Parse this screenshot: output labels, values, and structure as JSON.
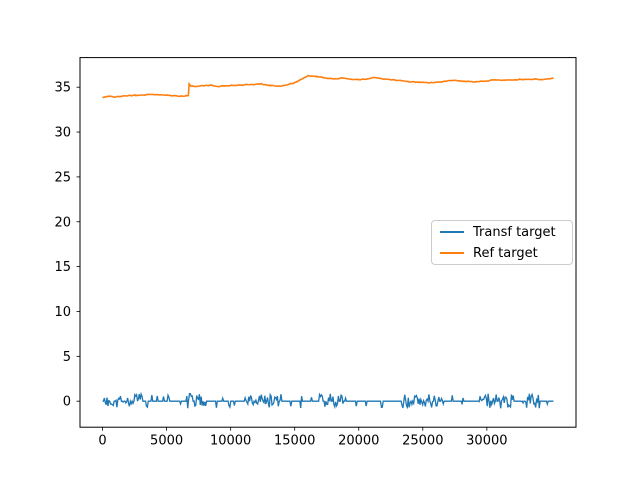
{
  "figure": {
    "background": "#ffffff",
    "axes_edge_color": "#000000",
    "tick_color": "#000000"
  },
  "chart_data": {
    "type": "line",
    "title": "",
    "xlabel": "",
    "ylabel": "",
    "grid": false,
    "xlim": [
      -1760,
      36960
    ],
    "ylim": [
      -2.9,
      38.3
    ],
    "xticks": [
      0,
      5000,
      10000,
      15000,
      20000,
      25000,
      30000
    ],
    "yticks": [
      0,
      5,
      10,
      15,
      20,
      25,
      30,
      35
    ],
    "legend": {
      "position": "center right",
      "entries": [
        {
          "label": "Transf target",
          "color": "#1f77b4"
        },
        {
          "label": "Ref target",
          "color": "#ff7f0e"
        }
      ]
    },
    "series": [
      {
        "name": "Transf target",
        "color": "#1f77b4",
        "kind": "noisy_baseline",
        "baseline": 0,
        "x_start": 0,
        "x_end": 35200,
        "spike_amp_up": 0.85,
        "spike_amp_down": 0.8,
        "burst_regions": [
          [
            0,
            3100
          ],
          [
            6500,
            8300
          ],
          [
            11100,
            14100
          ],
          [
            16900,
            19000
          ],
          [
            23300,
            26600
          ],
          [
            29400,
            32200
          ],
          [
            32600,
            34200
          ]
        ],
        "single_spikes": [
          3470,
          3860,
          4250,
          4760,
          5150,
          6100,
          8900,
          9400,
          9900,
          10300,
          14700,
          15500,
          16300,
          19800,
          20600,
          21800,
          27300,
          28100,
          34700
        ]
      },
      {
        "name": "Ref target",
        "color": "#ff7f0e",
        "kind": "keypoints",
        "noise": 0.05,
        "keypoints": [
          [
            0,
            33.85
          ],
          [
            400,
            34.0
          ],
          [
            900,
            33.9
          ],
          [
            1800,
            34.05
          ],
          [
            2600,
            34.1
          ],
          [
            3400,
            34.15
          ],
          [
            4200,
            34.2
          ],
          [
            5000,
            34.1
          ],
          [
            5800,
            34.0
          ],
          [
            6500,
            34.05
          ],
          [
            6700,
            34.05
          ],
          [
            6760,
            35.4
          ],
          [
            6900,
            35.1
          ],
          [
            7600,
            35.15
          ],
          [
            8400,
            35.2
          ],
          [
            9200,
            35.1
          ],
          [
            10000,
            35.2
          ],
          [
            10800,
            35.25
          ],
          [
            11600,
            35.3
          ],
          [
            12400,
            35.35
          ],
          [
            13100,
            35.2
          ],
          [
            13800,
            35.1
          ],
          [
            14400,
            35.25
          ],
          [
            15100,
            35.55
          ],
          [
            15700,
            36.0
          ],
          [
            16100,
            36.3
          ],
          [
            16700,
            36.2
          ],
          [
            17300,
            36.05
          ],
          [
            18000,
            35.95
          ],
          [
            18700,
            36.0
          ],
          [
            19400,
            35.9
          ],
          [
            20000,
            35.85
          ],
          [
            20700,
            35.9
          ],
          [
            21300,
            36.1
          ],
          [
            21700,
            35.95
          ],
          [
            22400,
            35.85
          ],
          [
            23100,
            35.75
          ],
          [
            23900,
            35.6
          ],
          [
            24700,
            35.55
          ],
          [
            25500,
            35.5
          ],
          [
            26300,
            35.55
          ],
          [
            26900,
            35.7
          ],
          [
            27600,
            35.75
          ],
          [
            28400,
            35.65
          ],
          [
            29200,
            35.6
          ],
          [
            30000,
            35.7
          ],
          [
            30700,
            35.85
          ],
          [
            31400,
            35.8
          ],
          [
            32100,
            35.85
          ],
          [
            32900,
            35.85
          ],
          [
            33600,
            35.9
          ],
          [
            34400,
            35.85
          ],
          [
            35200,
            36.0
          ]
        ]
      }
    ]
  }
}
